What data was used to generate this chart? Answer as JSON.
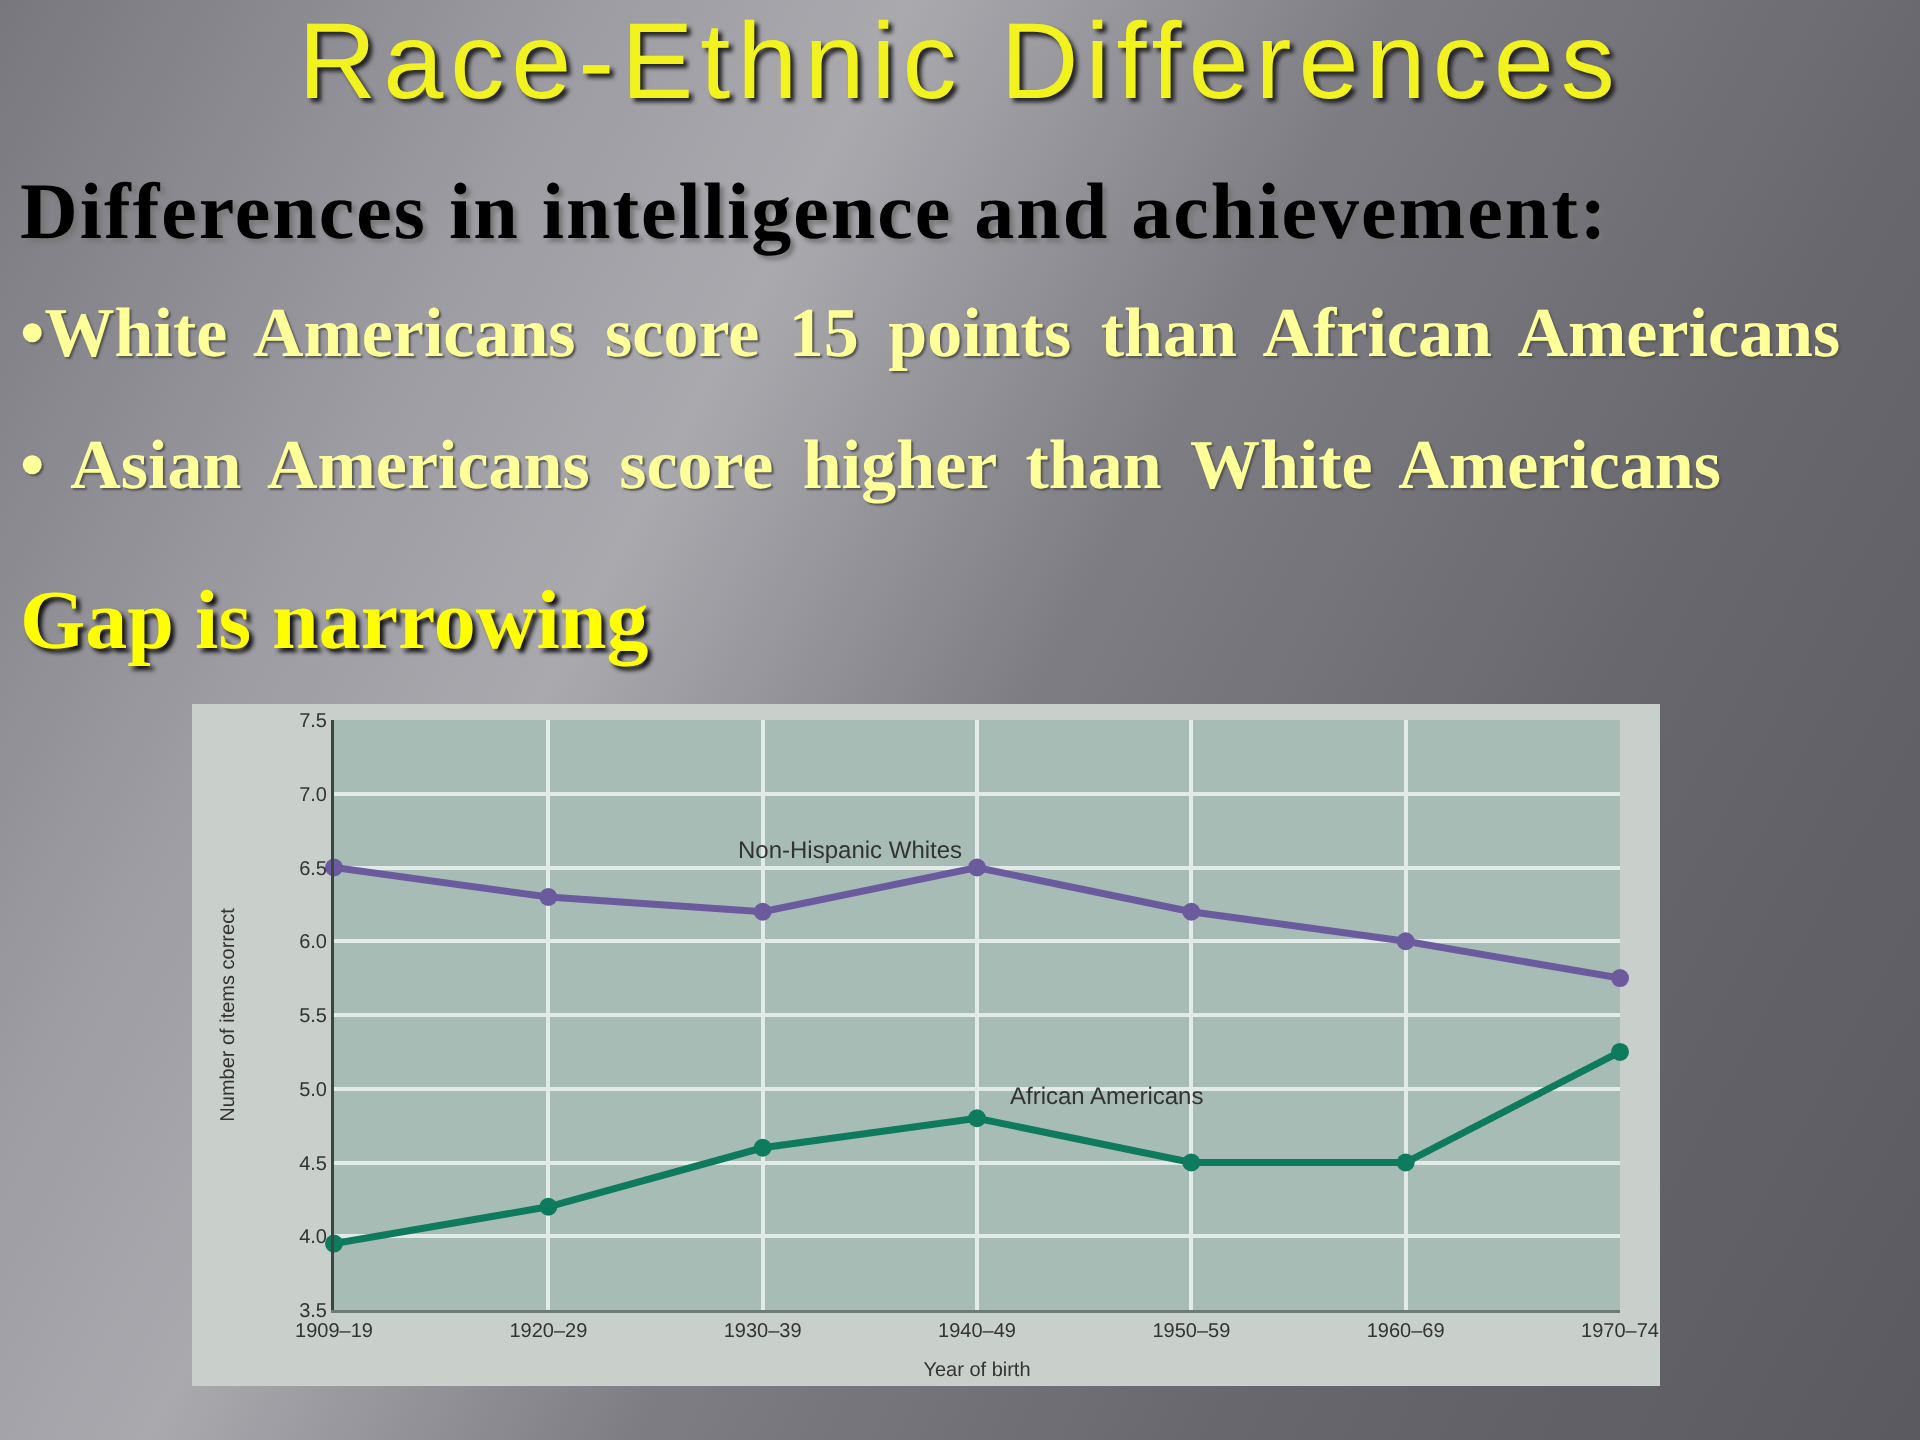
{
  "chart_data": {
    "type": "line",
    "title": "Race-Ethnic Differences",
    "subtitle": "Differences in intelligence and achievement:",
    "annotations": [
      "•White Americans score 15 points than African Americans",
      "• Asian Americans score higher than White Americans",
      "Gap is narrowing"
    ],
    "xlabel": "Year of birth",
    "ylabel": "Number of items correct",
    "categories": [
      "1909–19",
      "1920–29",
      "1930–39",
      "1940–49",
      "1950–59",
      "1960–69",
      "1970–74"
    ],
    "series": [
      {
        "name": "Non-Hispanic Whites",
        "color": "#6b5b9e",
        "values": [
          6.5,
          6.3,
          6.2,
          6.5,
          6.2,
          6.0,
          5.75
        ]
      },
      {
        "name": "African Americans",
        "color": "#0e7a5e",
        "values": [
          3.95,
          4.2,
          4.6,
          4.8,
          4.5,
          4.5,
          5.25
        ]
      }
    ],
    "ylim": [
      3.5,
      7.5
    ],
    "yticks": [
      3.5,
      {
        "value": 4,
        "label": "4.0"
      },
      4.5,
      {
        "value": 5,
        "label": "5.0"
      },
      5.5,
      {
        "value": 6,
        "label": "6.0"
      },
      6.5,
      {
        "value": 7,
        "label": "7.0"
      },
      7.5
    ],
    "grid": true,
    "legend": false,
    "marker": "circle",
    "line_style": "solid"
  }
}
